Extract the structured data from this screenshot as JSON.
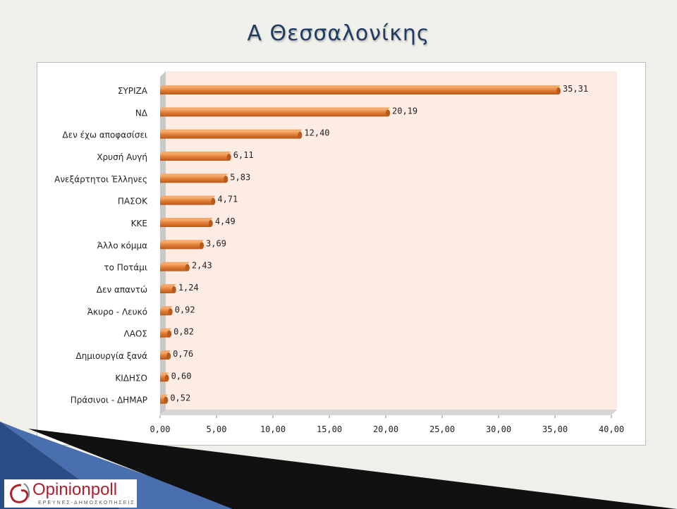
{
  "slide": {
    "title": "Α Θεσσαλονίκης"
  },
  "chart_data": {
    "type": "bar",
    "orientation": "horizontal",
    "title": "",
    "xlabel": "",
    "ylabel": "",
    "categories": [
      "ΣΥΡΙΖΑ",
      "ΝΔ",
      "Δεν έχω αποφασίσει",
      "Χρυσή  Αυγή",
      "Ανεξάρτητοι  Έλληνες",
      "ΠΑΣΟΚ",
      "ΚΚΕ",
      "Άλλο κόμμα",
      "το Ποτάμι",
      "Δεν απαντώ",
      "Άκυρο - Λευκό",
      "ΛΑΟΣ",
      "Δημιουργία  ξανά",
      "ΚΙΔΗΣΟ",
      "Πράσινοι - ΔΗΜΑΡ"
    ],
    "values": [
      35.31,
      20.19,
      12.4,
      6.11,
      5.83,
      4.71,
      4.49,
      3.69,
      2.43,
      1.24,
      0.92,
      0.82,
      0.76,
      0.6,
      0.52
    ],
    "value_labels": [
      "35,31",
      "20,19",
      "12,40",
      "6,11",
      "5,83",
      "4,71",
      "4,49",
      "3,69",
      "2,43",
      "1,24",
      "0,92",
      "0,82",
      "0,76",
      "0,60",
      "0,52"
    ],
    "xlim": [
      0,
      40
    ],
    "xticks": [
      0,
      5,
      10,
      15,
      20,
      25,
      30,
      35,
      40
    ],
    "xtick_labels": [
      "0,00",
      "5,00",
      "10,00",
      "15,00",
      "20,00",
      "25,00",
      "30,00",
      "35,00",
      "40,00"
    ],
    "grid": false,
    "legend": "none",
    "colors": {
      "bar": "#e07b32",
      "bar_light": "#f5a868",
      "bar_dark": "#b85a1c",
      "plot_bg": "#fdece4"
    }
  },
  "logo": {
    "name": "Opinionpoll",
    "tagline": "ΕΡΕΥΝΕΣ-ΔΗΜΟΣΚΟΠΗΣΕΙΣ"
  }
}
